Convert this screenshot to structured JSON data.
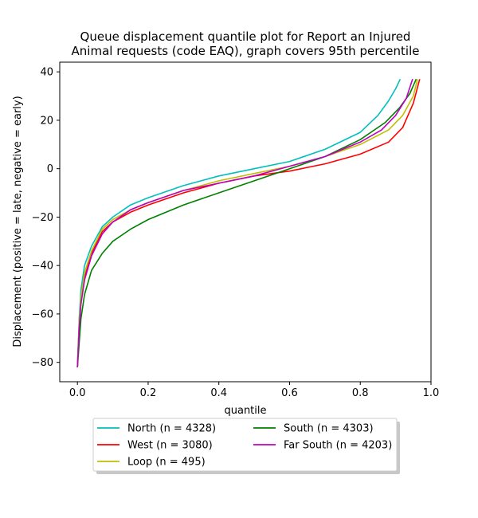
{
  "chart_data": {
    "type": "line",
    "title_lines": [
      "Queue displacement quantile plot for Report an Injured",
      "Animal  requests (code EAQ), graph covers 95th percentile"
    ],
    "xlabel": "quantile",
    "ylabel": "Displacement (positive = late, negative = early)",
    "xlim": [
      -0.05,
      1.0
    ],
    "ylim": [
      -88,
      44
    ],
    "xticks": [
      0.0,
      0.2,
      0.4,
      0.6,
      0.8,
      1.0
    ],
    "xtick_labels": [
      "0.0",
      "0.2",
      "0.4",
      "0.6",
      "0.8",
      "1.0"
    ],
    "yticks": [
      -80,
      -60,
      -40,
      -20,
      0,
      20,
      40
    ],
    "ytick_labels": [
      "−80",
      "−60",
      "−40",
      "−20",
      "0",
      "20",
      "40"
    ],
    "grid": false,
    "legend_position": "below plot, two columns",
    "series": [
      {
        "name": "North (n = 4328)",
        "color": "#00bfbf",
        "x": [
          0.0,
          0.005,
          0.01,
          0.02,
          0.04,
          0.07,
          0.1,
          0.15,
          0.2,
          0.3,
          0.4,
          0.5,
          0.6,
          0.7,
          0.8,
          0.85,
          0.88,
          0.9,
          0.913
        ],
        "y": [
          -82,
          -62,
          -50,
          -40,
          -32,
          -24,
          -20,
          -15,
          -12,
          -7,
          -3,
          0,
          3,
          8,
          15,
          22,
          28,
          33,
          37
        ]
      },
      {
        "name": "West (n = 3080)",
        "color": "#ff0000",
        "x": [
          0.0,
          0.005,
          0.01,
          0.02,
          0.04,
          0.07,
          0.1,
          0.15,
          0.2,
          0.3,
          0.4,
          0.5,
          0.6,
          0.7,
          0.8,
          0.88,
          0.92,
          0.95,
          0.968
        ],
        "y": [
          -82,
          -65,
          -55,
          -45,
          -35,
          -26,
          -22,
          -18,
          -15,
          -10,
          -6,
          -3,
          -1,
          2,
          6,
          11,
          17,
          27,
          37
        ]
      },
      {
        "name": "Loop (n = 495)",
        "color": "#bfbf00",
        "x": [
          0.0,
          0.005,
          0.01,
          0.02,
          0.04,
          0.07,
          0.1,
          0.15,
          0.2,
          0.3,
          0.4,
          0.5,
          0.6,
          0.7,
          0.8,
          0.88,
          0.92,
          0.95,
          0.962
        ],
        "y": [
          -82,
          -64,
          -53,
          -43,
          -34,
          -25,
          -21,
          -17,
          -14,
          -9,
          -5,
          -2,
          1,
          5,
          10,
          16,
          22,
          30,
          37
        ]
      },
      {
        "name": "South (n = 4303)",
        "color": "#008000",
        "x": [
          0.0,
          0.005,
          0.01,
          0.02,
          0.04,
          0.07,
          0.1,
          0.15,
          0.2,
          0.3,
          0.4,
          0.5,
          0.6,
          0.7,
          0.8,
          0.87,
          0.91,
          0.94,
          0.958
        ],
        "y": [
          -82,
          -72,
          -62,
          -52,
          -42,
          -35,
          -30,
          -25,
          -21,
          -15,
          -10,
          -5,
          0,
          5,
          12,
          19,
          25,
          31,
          37
        ]
      },
      {
        "name": "Far South (n = 4203)",
        "color": "#bf00bf",
        "x": [
          0.0,
          0.005,
          0.01,
          0.02,
          0.04,
          0.07,
          0.1,
          0.15,
          0.2,
          0.3,
          0.4,
          0.5,
          0.6,
          0.7,
          0.8,
          0.86,
          0.9,
          0.93,
          0.948
        ],
        "y": [
          -82,
          -66,
          -56,
          -46,
          -36,
          -27,
          -22,
          -17,
          -14,
          -9,
          -6,
          -3,
          1,
          5,
          11,
          16,
          22,
          29,
          37
        ]
      }
    ]
  }
}
